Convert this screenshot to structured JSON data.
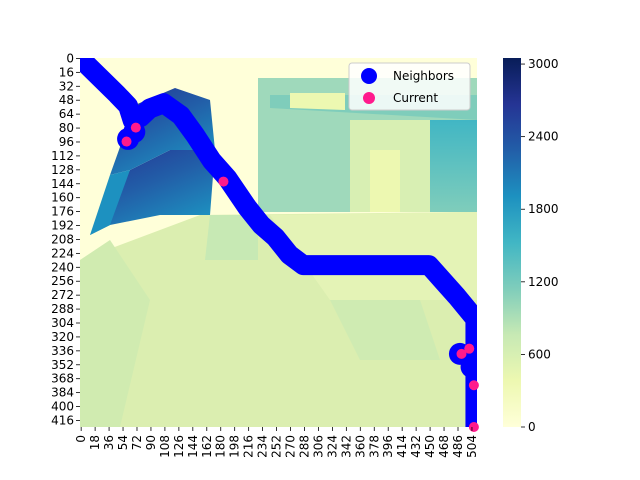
{
  "chart_data": {
    "type": "heatmap",
    "title": "",
    "xlabel": "",
    "ylabel": "",
    "x_range": [
      0,
      512
    ],
    "y_range": [
      0,
      424
    ],
    "x_ticks": [
      0,
      18,
      36,
      54,
      72,
      90,
      108,
      126,
      144,
      162,
      180,
      198,
      216,
      234,
      252,
      270,
      288,
      306,
      324,
      342,
      360,
      378,
      396,
      414,
      432,
      450,
      468,
      486,
      504
    ],
    "y_ticks": [
      0,
      16,
      32,
      48,
      64,
      80,
      96,
      112,
      128,
      144,
      160,
      176,
      192,
      208,
      224,
      240,
      256,
      272,
      288,
      304,
      320,
      336,
      352,
      368,
      384,
      400,
      416
    ],
    "colorbar": {
      "colormap": "YlGnBu",
      "range": [
        0,
        3050
      ],
      "ticks": [
        0,
        600,
        1200,
        1800,
        2400,
        3000
      ]
    },
    "legend": {
      "position": "upper right",
      "entries": [
        {
          "label": "Neighbors",
          "color": "#0000ff",
          "marker": "circle-large"
        },
        {
          "label": "Current",
          "color": "#ff1a8c",
          "marker": "circle"
        }
      ]
    },
    "neighbors_path": [
      [
        0,
        0
      ],
      [
        48,
        42
      ],
      [
        62,
        55
      ],
      [
        68,
        72
      ],
      [
        78,
        68
      ],
      [
        90,
        58
      ],
      [
        108,
        52
      ],
      [
        130,
        66
      ],
      [
        148,
        88
      ],
      [
        170,
        118
      ],
      [
        190,
        138
      ],
      [
        216,
        172
      ],
      [
        234,
        192
      ],
      [
        252,
        206
      ],
      [
        270,
        226
      ],
      [
        288,
        238
      ],
      [
        450,
        238
      ],
      [
        468,
        256
      ],
      [
        486,
        274
      ],
      [
        510,
        300
      ],
      [
        510,
        424
      ]
    ],
    "neighbors_blobs": [
      [
        62,
        93
      ],
      [
        70,
        85
      ],
      [
        490,
        340
      ],
      [
        505,
        355
      ]
    ],
    "current_points": [
      [
        60,
        96
      ],
      [
        72,
        80
      ],
      [
        185,
        142
      ],
      [
        492,
        340
      ],
      [
        502,
        334
      ],
      [
        508,
        376
      ],
      [
        508,
        424
      ]
    ],
    "colors": {
      "neighbors": "#0000ff",
      "current": "#ff1a8c"
    }
  }
}
